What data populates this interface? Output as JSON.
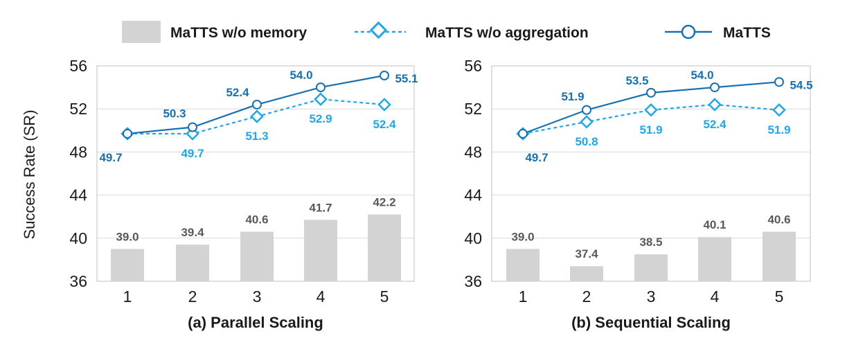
{
  "legend": {
    "items": [
      {
        "name": "MaTTS w/o memory"
      },
      {
        "name": "MaTTS w/o aggregation"
      },
      {
        "name": "MaTTS"
      }
    ]
  },
  "colors": {
    "bar": "#d3d3d3",
    "bar_label": "#595959",
    "aggregation": "#1ea7ee",
    "matts": "#1570b4",
    "grid": "#d9d9d9",
    "frame": "#bfbfbf"
  },
  "chart_data": [
    {
      "type": "bar+line",
      "title": "(a) Parallel Scaling",
      "ylabel": "Success Rate (SR)",
      "ylim": [
        36,
        56
      ],
      "yticks": [
        36,
        40,
        44,
        48,
        52,
        56
      ],
      "categories": [
        "1",
        "2",
        "3",
        "4",
        "5"
      ],
      "grid": true,
      "legend_position": "top",
      "series": [
        {
          "name": "MaTTS w/o memory",
          "kind": "bar",
          "values": [
            39.0,
            39.4,
            40.6,
            41.7,
            42.2
          ],
          "labels": [
            "39.0",
            "39.4",
            "40.6",
            "41.7",
            "42.2"
          ]
        },
        {
          "name": "MaTTS w/o aggregation",
          "kind": "line-dashed-diamond",
          "values": [
            49.7,
            49.7,
            51.3,
            52.9,
            52.4
          ],
          "labels": [
            "",
            "49.7",
            "51.3",
            "52.9",
            "52.4"
          ]
        },
        {
          "name": "MaTTS",
          "kind": "line-solid-circle",
          "values": [
            49.7,
            50.3,
            52.4,
            54.0,
            55.1
          ],
          "labels": [
            "49.7",
            "50.3",
            "52.4",
            "54.0",
            "55.1"
          ]
        }
      ]
    },
    {
      "type": "bar+line",
      "title": "(b) Sequential Scaling",
      "ylabel": "",
      "ylim": [
        36,
        56
      ],
      "yticks": [
        36,
        40,
        44,
        48,
        52,
        56
      ],
      "categories": [
        "1",
        "2",
        "3",
        "4",
        "5"
      ],
      "grid": true,
      "legend_position": "top",
      "series": [
        {
          "name": "MaTTS w/o memory",
          "kind": "bar",
          "values": [
            39.0,
            37.4,
            38.5,
            40.1,
            40.6
          ],
          "labels": [
            "39.0",
            "37.4",
            "38.5",
            "40.1",
            "40.6"
          ]
        },
        {
          "name": "MaTTS w/o aggregation",
          "kind": "line-dashed-diamond",
          "values": [
            49.7,
            50.8,
            51.9,
            52.4,
            51.9
          ],
          "labels": [
            "",
            "50.8",
            "51.9",
            "52.4",
            "51.9"
          ]
        },
        {
          "name": "MaTTS",
          "kind": "line-solid-circle",
          "values": [
            49.7,
            51.9,
            53.5,
            54.0,
            54.5
          ],
          "labels": [
            "49.7",
            "51.9",
            "53.5",
            "54.0",
            "54.5"
          ]
        }
      ]
    }
  ]
}
